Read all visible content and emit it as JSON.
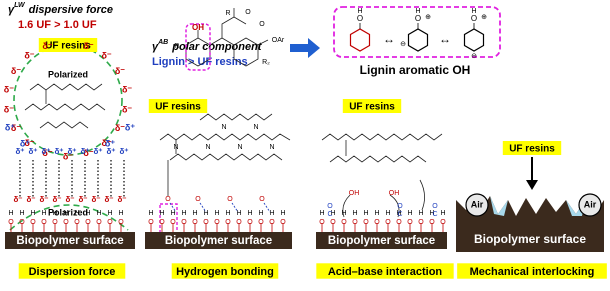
{
  "top": {
    "gamma": "γ",
    "lw": "LW",
    "dispersive": "dispersive force",
    "ratio": "1.6 UF > 1.0 UF",
    "ab": "AB",
    "polar": "polar component",
    "lignin_ratio": "Lignin > UF resins",
    "aromatic": "Lignin aromatic OH"
  },
  "labels": {
    "uf": "UF resins",
    "polarized": "Polarized",
    "surface": "Biopolymer surface",
    "air": "Air",
    "delta_minus": "δ⁻",
    "delta_plus": "δ⁺"
  },
  "atoms": {
    "o": "O",
    "h": "H",
    "n": "N",
    "c": "C",
    "oh": "OH",
    "r": "R",
    "r1": "R₁",
    "r2": "R₂",
    "oar": "OAr",
    "plus": "⊕",
    "minus": "⊖"
  },
  "captions": [
    "Dispersion force",
    "Hydrogen bonding",
    "Acid–base interaction",
    "Mechanical interlocking"
  ]
}
